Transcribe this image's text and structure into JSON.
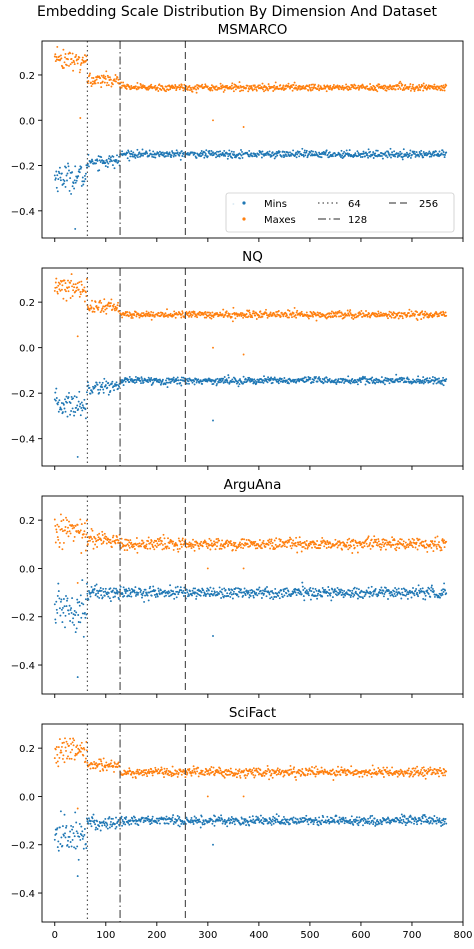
{
  "figure": {
    "title": "Embedding Scale Distribution By Dimension And Dataset"
  },
  "colors": {
    "mins": "#1f77b4",
    "maxes": "#ff7f0e",
    "vline": "#555555",
    "axis": "#000000"
  },
  "chart_data": [
    {
      "type": "scatter",
      "title": "MSMARCO",
      "xlim": [
        -25,
        800
      ],
      "ylim": [
        -0.52,
        0.35
      ],
      "xticks": [
        0,
        100,
        200,
        300,
        400,
        500,
        600,
        700,
        800
      ],
      "yticks": [
        -0.4,
        -0.2,
        0.0,
        0.2
      ],
      "ytick_labels": [
        "−0.4",
        "−0.2",
        "0.0",
        "0.2"
      ],
      "legend": {
        "placement": "lower-right",
        "entries": [
          {
            "label": "Mins",
            "kind": "marker",
            "series": "mins"
          },
          {
            "label": "Maxes",
            "kind": "marker",
            "series": "maxes"
          },
          {
            "label": "64",
            "kind": "dotted"
          },
          {
            "label": "128",
            "kind": "dashdot"
          },
          {
            "label": "256",
            "kind": "dashed"
          }
        ]
      },
      "vlines": [
        {
          "x": 64,
          "style": "dotted"
        },
        {
          "x": 128,
          "style": "dashdot"
        },
        {
          "x": 256,
          "style": "dashed"
        }
      ],
      "series": [
        {
          "name": "Mins",
          "key": "mins",
          "bands": [
            {
              "x": [
                0,
                64
              ],
              "center": -0.25,
              "spread": 0.03
            },
            {
              "x": [
                64,
                128
              ],
              "center": -0.18,
              "spread": 0.015
            },
            {
              "x": [
                128,
                768
              ],
              "center": -0.15,
              "spread": 0.008
            }
          ],
          "outliers": [
            [
              40,
              -0.48
            ],
            [
              64,
              -0.2
            ],
            [
              350,
              -0.37
            ]
          ]
        },
        {
          "name": "Maxes",
          "key": "maxes",
          "bands": [
            {
              "x": [
                0,
                64
              ],
              "center": 0.26,
              "spread": 0.025
            },
            {
              "x": [
                64,
                128
              ],
              "center": 0.18,
              "spread": 0.015
            },
            {
              "x": [
                128,
                768
              ],
              "center": 0.145,
              "spread": 0.008
            }
          ],
          "outliers": [
            [
              50,
              0.01
            ],
            [
              310,
              0.0
            ],
            [
              370,
              -0.03
            ]
          ]
        }
      ]
    },
    {
      "type": "scatter",
      "title": "NQ",
      "xlim": [
        -25,
        800
      ],
      "ylim": [
        -0.52,
        0.35
      ],
      "xticks": [
        0,
        100,
        200,
        300,
        400,
        500,
        600,
        700,
        800
      ],
      "yticks": [
        -0.4,
        -0.2,
        0.0,
        0.2
      ],
      "ytick_labels": [
        "−0.4",
        "−0.2",
        "0.0",
        "0.2"
      ],
      "vlines": [
        {
          "x": 64,
          "style": "dotted"
        },
        {
          "x": 128,
          "style": "dashdot"
        },
        {
          "x": 256,
          "style": "dashed"
        }
      ],
      "series": [
        {
          "name": "Mins",
          "key": "mins",
          "bands": [
            {
              "x": [
                0,
                64
              ],
              "center": -0.25,
              "spread": 0.03
            },
            {
              "x": [
                64,
                128
              ],
              "center": -0.17,
              "spread": 0.015
            },
            {
              "x": [
                128,
                768
              ],
              "center": -0.145,
              "spread": 0.008
            }
          ],
          "outliers": [
            [
              45,
              -0.48
            ],
            [
              310,
              -0.32
            ]
          ]
        },
        {
          "name": "Maxes",
          "key": "maxes",
          "bands": [
            {
              "x": [
                0,
                64
              ],
              "center": 0.26,
              "spread": 0.025
            },
            {
              "x": [
                64,
                128
              ],
              "center": 0.18,
              "spread": 0.015
            },
            {
              "x": [
                128,
                768
              ],
              "center": 0.145,
              "spread": 0.008
            }
          ],
          "outliers": [
            [
              45,
              0.05
            ],
            [
              310,
              0.0
            ],
            [
              370,
              -0.03
            ]
          ]
        }
      ]
    },
    {
      "type": "scatter",
      "title": "ArguAna",
      "xlim": [
        -25,
        800
      ],
      "ylim": [
        -0.52,
        0.3
      ],
      "xticks": [
        0,
        100,
        200,
        300,
        400,
        500,
        600,
        700,
        800
      ],
      "yticks": [
        -0.4,
        -0.2,
        0.0,
        0.2
      ],
      "ytick_labels": [
        "−0.4",
        "−0.2",
        "0.0",
        "0.2"
      ],
      "vlines": [
        {
          "x": 64,
          "style": "dotted"
        },
        {
          "x": 128,
          "style": "dashdot"
        },
        {
          "x": 256,
          "style": "dashed"
        }
      ],
      "series": [
        {
          "name": "Mins",
          "key": "mins",
          "bands": [
            {
              "x": [
                0,
                64
              ],
              "center": -0.16,
              "spread": 0.05
            },
            {
              "x": [
                64,
                128
              ],
              "center": -0.1,
              "spread": 0.015
            },
            {
              "x": [
                128,
                768
              ],
              "center": -0.1,
              "spread": 0.012
            }
          ],
          "outliers": [
            [
              45,
              -0.45
            ],
            [
              310,
              -0.28
            ]
          ]
        },
        {
          "name": "Maxes",
          "key": "maxes",
          "bands": [
            {
              "x": [
                0,
                64
              ],
              "center": 0.16,
              "spread": 0.035
            },
            {
              "x": [
                64,
                128
              ],
              "center": 0.12,
              "spread": 0.015
            },
            {
              "x": [
                128,
                768
              ],
              "center": 0.1,
              "spread": 0.012
            }
          ],
          "outliers": [
            [
              45,
              -0.06
            ],
            [
              300,
              0.0
            ],
            [
              370,
              0.0
            ]
          ]
        }
      ]
    },
    {
      "type": "scatter",
      "title": "SciFact",
      "xlim": [
        -25,
        800
      ],
      "ylim": [
        -0.52,
        0.3
      ],
      "xticks": [
        0,
        100,
        200,
        300,
        400,
        500,
        600,
        700,
        800
      ],
      "xtick_labels": [
        "0",
        "100",
        "200",
        "300",
        "400",
        "500",
        "600",
        "700",
        "800"
      ],
      "yticks": [
        -0.4,
        -0.2,
        0.0,
        0.2
      ],
      "ytick_labels": [
        "−0.4",
        "−0.2",
        "0.0",
        "0.2"
      ],
      "vlines": [
        {
          "x": 64,
          "style": "dotted"
        },
        {
          "x": 128,
          "style": "dashdot"
        },
        {
          "x": 256,
          "style": "dashed"
        }
      ],
      "series": [
        {
          "name": "Mins",
          "key": "mins",
          "bands": [
            {
              "x": [
                0,
                64
              ],
              "center": -0.16,
              "spread": 0.04
            },
            {
              "x": [
                64,
                128
              ],
              "center": -0.11,
              "spread": 0.015
            },
            {
              "x": [
                128,
                768
              ],
              "center": -0.1,
              "spread": 0.01
            }
          ],
          "outliers": [
            [
              45,
              -0.33
            ],
            [
              310,
              -0.2
            ]
          ]
        },
        {
          "name": "Maxes",
          "key": "maxes",
          "bands": [
            {
              "x": [
                0,
                64
              ],
              "center": 0.18,
              "spread": 0.03
            },
            {
              "x": [
                64,
                128
              ],
              "center": 0.13,
              "spread": 0.012
            },
            {
              "x": [
                128,
                768
              ],
              "center": 0.1,
              "spread": 0.01
            }
          ],
          "outliers": [
            [
              45,
              -0.05
            ],
            [
              300,
              0.0
            ],
            [
              370,
              0.0
            ]
          ]
        }
      ]
    }
  ]
}
